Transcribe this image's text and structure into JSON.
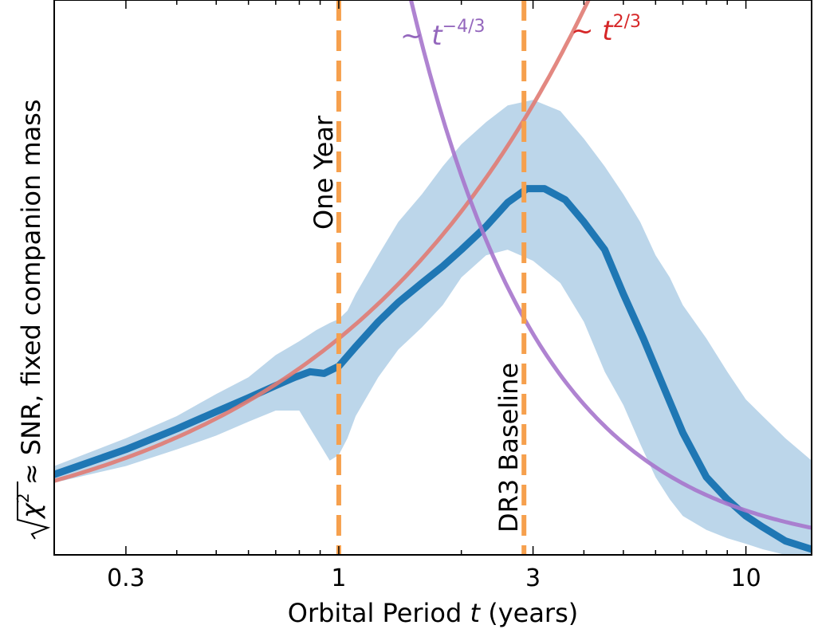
{
  "chart_data": {
    "type": "line",
    "xlabel": "Orbital Period t (years)",
    "xlabel_parts": {
      "before": "Orbital Period ",
      "var": "t",
      "after": " (years)"
    },
    "ylabel": "√χ² ≈ SNR, fixed companion mass",
    "ylabel_parts": {
      "chi": "χ",
      "sup": "2",
      "rest": " ≈ SNR, fixed companion mass"
    },
    "x_scale": "log",
    "xlim": [
      0.2,
      14.5
    ],
    "ylim": [
      0,
      1
    ],
    "y_ticks_labeled": false,
    "x_ticks": [
      {
        "value": 0.3,
        "label": "0.3"
      },
      {
        "value": 1,
        "label": "1"
      },
      {
        "value": 3,
        "label": "3"
      },
      {
        "value": 10,
        "label": "10"
      }
    ],
    "series": [
      {
        "role": "median",
        "color": "#1f77b4",
        "x": [
          0.2,
          0.3,
          0.4,
          0.5,
          0.6,
          0.7,
          0.78,
          0.85,
          0.92,
          1.0,
          1.1,
          1.25,
          1.4,
          1.6,
          1.8,
          2.0,
          2.3,
          2.6,
          2.9,
          3.2,
          3.6,
          4.0,
          4.5,
          5.0,
          5.6,
          6.3,
          7.0,
          8.0,
          9.0,
          10.0,
          11.0,
          12.5,
          14.5
        ],
        "y": [
          0.145,
          0.19,
          0.227,
          0.258,
          0.283,
          0.305,
          0.32,
          0.33,
          0.327,
          0.34,
          0.375,
          0.42,
          0.455,
          0.49,
          0.52,
          0.55,
          0.592,
          0.635,
          0.66,
          0.66,
          0.64,
          0.6,
          0.55,
          0.47,
          0.39,
          0.3,
          0.22,
          0.14,
          0.1,
          0.07,
          0.05,
          0.025,
          0.01
        ]
      }
    ],
    "band": {
      "color": "#bcd6ea",
      "x": [
        0.2,
        0.3,
        0.4,
        0.5,
        0.6,
        0.7,
        0.8,
        0.88,
        0.95,
        1.0,
        1.05,
        1.1,
        1.25,
        1.4,
        1.6,
        1.8,
        2.0,
        2.3,
        2.6,
        3.0,
        3.5,
        4.0,
        4.5,
        5.0,
        5.5,
        6.0,
        6.5,
        7.0,
        8.0,
        9.0,
        10.0,
        11.0,
        12.5,
        14.5
      ],
      "lower": [
        0.13,
        0.16,
        0.19,
        0.215,
        0.24,
        0.26,
        0.26,
        0.21,
        0.17,
        0.18,
        0.21,
        0.25,
        0.32,
        0.37,
        0.41,
        0.45,
        0.5,
        0.54,
        0.55,
        0.53,
        0.49,
        0.42,
        0.33,
        0.27,
        0.2,
        0.14,
        0.1,
        0.07,
        0.045,
        0.03,
        0.02,
        0.01,
        0.0,
        0.0
      ],
      "upper": [
        0.16,
        0.21,
        0.25,
        0.29,
        0.32,
        0.36,
        0.385,
        0.405,
        0.418,
        0.425,
        0.44,
        0.47,
        0.54,
        0.6,
        0.65,
        0.7,
        0.74,
        0.78,
        0.81,
        0.82,
        0.8,
        0.75,
        0.7,
        0.65,
        0.6,
        0.54,
        0.5,
        0.45,
        0.39,
        0.33,
        0.28,
        0.25,
        0.21,
        0.17
      ]
    },
    "scaling_curves": [
      {
        "id": "pow-two-thirds",
        "color": "#e07b73",
        "exponent": 0.6667,
        "anchor_x": 1.0,
        "anchor_y": 0.39,
        "label_prefix": "~ ",
        "label_var": "t",
        "label_exp": "2/3",
        "label_color": "#d62728"
      },
      {
        "id": "pow-neg-four-thirds",
        "color": "#a675cc",
        "exponent": -1.3333,
        "anchor_x": 10.0,
        "anchor_y": 0.08,
        "label_prefix": "~ ",
        "label_var": "t",
        "label_exp": "−4/3",
        "label_color": "#9467bd"
      }
    ],
    "vertical_lines": [
      {
        "x": 1.0,
        "label": "One Year",
        "color": "#f6a04d"
      },
      {
        "x": 2.85,
        "label": "DR3 Baseline",
        "color": "#f6a04d"
      }
    ]
  }
}
